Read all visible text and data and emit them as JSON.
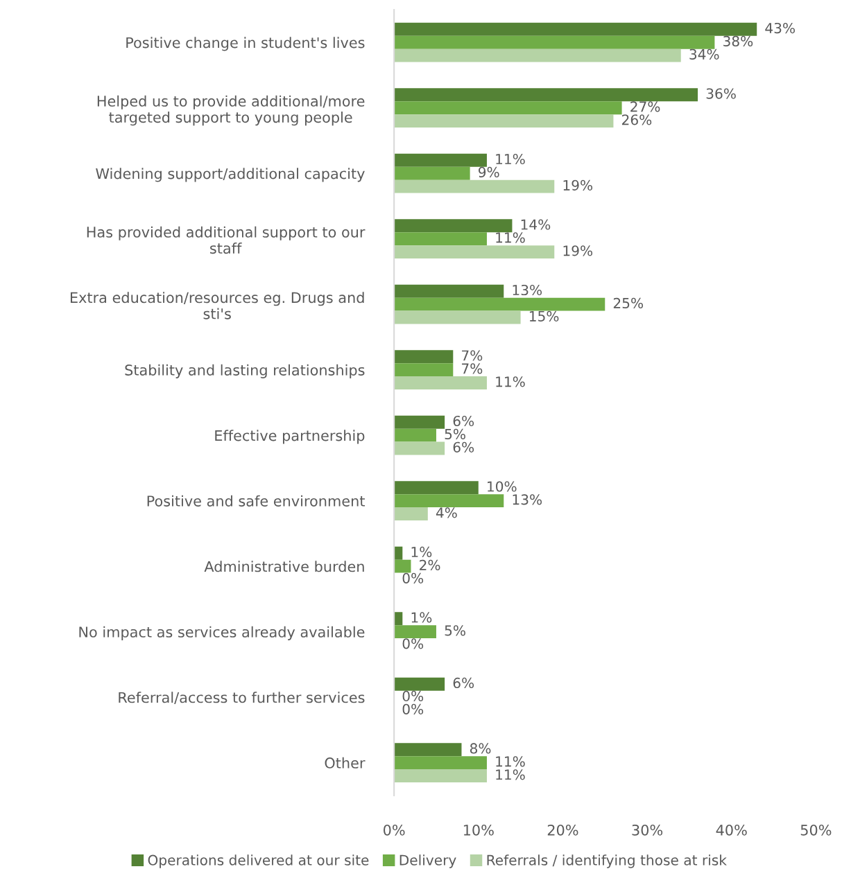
{
  "chart_data": {
    "type": "bar",
    "orientation": "horizontal",
    "categories": [
      "Positive change in student's lives",
      "Helped us to provide additional/more\ntargeted support to young people",
      "Widening support/additional capacity",
      "Has provided additional support to our\nstaff",
      "Extra education/resources eg. Drugs and\nsti's",
      "Stability and lasting relationships",
      "Effective partnership",
      "Positive and safe environment",
      "Administrative burden",
      "No impact as services already available",
      "Referral/access to further services",
      "Other"
    ],
    "series": [
      {
        "name": "Operations delivered at our site",
        "color": "#548235",
        "values": [
          43,
          36,
          11,
          14,
          13,
          7,
          6,
          10,
          1,
          1,
          6,
          8
        ],
        "value_labels": [
          "43%",
          "36%",
          "11%",
          "14%",
          "13%",
          "7%",
          "6%",
          "10%",
          "1%",
          "1%",
          "6%",
          "8%"
        ]
      },
      {
        "name": "Delivery",
        "color": "#70ad47",
        "values": [
          38,
          27,
          9,
          11,
          25,
          7,
          5,
          13,
          2,
          5,
          0,
          11
        ],
        "value_labels": [
          "38%",
          "27%",
          "9%",
          "11%",
          "25%",
          "7%",
          "5%",
          "13%",
          "2%",
          "5%",
          "0%",
          "11%"
        ]
      },
      {
        "name": "Referrals / identifying those at risk",
        "color": "#b5d3a5",
        "values": [
          34,
          26,
          19,
          19,
          15,
          11,
          6,
          4,
          0,
          0,
          0,
          11
        ],
        "value_labels": [
          "34%",
          "26%",
          "19%",
          "19%",
          "15%",
          "11%",
          "6%",
          "4%",
          "0%",
          "0%",
          "0%",
          "11%"
        ]
      }
    ],
    "xlim": [
      0,
      50
    ],
    "xticks": [
      {
        "value": 0,
        "label": "0%"
      },
      {
        "value": 10,
        "label": "10%"
      },
      {
        "value": 20,
        "label": "20%"
      },
      {
        "value": 30,
        "label": "30%"
      },
      {
        "value": 40,
        "label": "40%"
      },
      {
        "value": 50,
        "label": "50%"
      }
    ],
    "grid": false,
    "legend": "bottom"
  }
}
